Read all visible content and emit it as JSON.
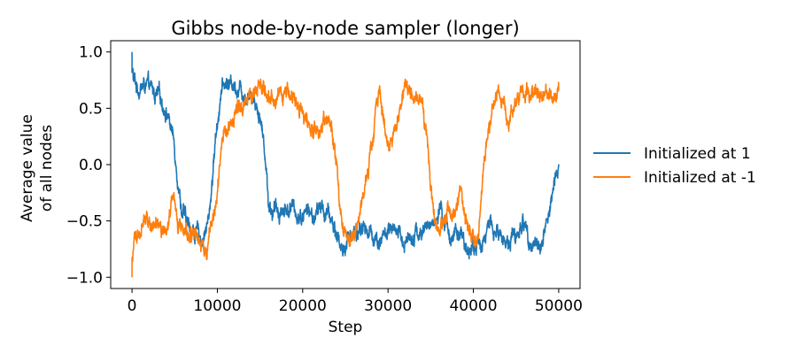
{
  "chart_data": {
    "type": "line",
    "title": "Gibbs node-by-node sampler (longer)",
    "xlabel": "Step",
    "ylabel_line1": "Average value",
    "ylabel_line2": "of all nodes",
    "xlim": [
      -2500,
      52500
    ],
    "ylim": [
      -1.1,
      1.1
    ],
    "xticks": [
      0,
      10000,
      20000,
      30000,
      40000,
      50000
    ],
    "xtick_labels": [
      "0",
      "10000",
      "20000",
      "30000",
      "40000",
      "50000"
    ],
    "yticks": [
      -1.0,
      -0.5,
      0.0,
      0.5,
      1.0
    ],
    "ytick_labels": [
      "−1.0",
      "−0.5",
      "0.0",
      "0.5",
      "1.0"
    ],
    "grid": false,
    "legend_position": "right-outside",
    "series": [
      {
        "name": "Initialized at 1",
        "color": "#1f77b4",
        "start": 1.0,
        "x": [
          0,
          150,
          700,
          1500,
          2500,
          3500,
          4200,
          4800,
          5300,
          5800,
          6500,
          7300,
          8200,
          9000,
          9800,
          10400,
          11000,
          12000,
          13000,
          14200,
          15000,
          15600,
          16000,
          16500,
          17200,
          18500,
          19800,
          20500,
          21200,
          22200,
          23400,
          24200,
          24700,
          25200,
          26000,
          27000,
          28000,
          29000,
          30000,
          31000,
          32000,
          33000,
          34000,
          35200,
          36200,
          37200,
          38200,
          39000,
          40000,
          41000,
          42000,
          43000,
          44000,
          45000,
          46000,
          47000,
          47800,
          48400,
          49000,
          49500,
          50000
        ],
        "values": [
          1.0,
          0.75,
          0.68,
          0.7,
          0.63,
          0.56,
          0.46,
          0.25,
          -0.05,
          -0.38,
          -0.55,
          -0.6,
          -0.65,
          -0.5,
          0.25,
          0.65,
          0.72,
          0.72,
          0.66,
          0.62,
          0.45,
          0.1,
          -0.32,
          -0.42,
          -0.4,
          -0.38,
          -0.45,
          -0.4,
          -0.48,
          -0.38,
          -0.5,
          -0.66,
          -0.77,
          -0.68,
          -0.6,
          -0.55,
          -0.62,
          -0.66,
          -0.6,
          -0.64,
          -0.68,
          -0.58,
          -0.62,
          -0.5,
          -0.45,
          -0.6,
          -0.64,
          -0.72,
          -0.75,
          -0.68,
          -0.55,
          -0.62,
          -0.68,
          -0.62,
          -0.52,
          -0.7,
          -0.75,
          -0.55,
          -0.38,
          -0.2,
          0.0
        ]
      },
      {
        "name": "Initialized at -1",
        "color": "#ff7f0e",
        "start": -1.0,
        "x": [
          0,
          150,
          600,
          1200,
          2000,
          3000,
          4000,
          4800,
          5300,
          6000,
          7000,
          8000,
          8800,
          9400,
          10000,
          10600,
          11200,
          12000,
          13000,
          14000,
          15000,
          16000,
          17000,
          18000,
          19000,
          19800,
          20500,
          21500,
          22500,
          23400,
          24000,
          24400,
          24900,
          25500,
          26200,
          27000,
          27800,
          28400,
          29000,
          29700,
          30500,
          31200,
          32000,
          33000,
          34000,
          34600,
          35000,
          35500,
          36200,
          37000,
          38000,
          38600,
          39200,
          39700,
          40300,
          40700,
          41100,
          41600,
          42200,
          43000,
          44000,
          45000,
          46000,
          47000,
          48000,
          49000,
          50000
        ],
        "values": [
          -1.0,
          -0.75,
          -0.62,
          -0.5,
          -0.55,
          -0.5,
          -0.62,
          -0.3,
          -0.58,
          -0.66,
          -0.6,
          -0.7,
          -0.72,
          -0.55,
          -0.25,
          0.1,
          0.32,
          0.42,
          0.55,
          0.65,
          0.7,
          0.62,
          0.58,
          0.64,
          0.56,
          0.52,
          0.38,
          0.3,
          0.4,
          0.32,
          0.0,
          -0.35,
          -0.6,
          -0.72,
          -0.6,
          -0.35,
          0.0,
          0.4,
          0.72,
          0.3,
          0.15,
          0.4,
          0.65,
          0.62,
          0.5,
          0.2,
          -0.2,
          -0.55,
          -0.62,
          -0.35,
          -0.45,
          -0.2,
          -0.55,
          -0.62,
          -0.7,
          -0.5,
          -0.05,
          0.25,
          0.5,
          0.62,
          0.42,
          0.55,
          0.68,
          0.65,
          0.58,
          0.55,
          0.68
        ]
      }
    ]
  }
}
